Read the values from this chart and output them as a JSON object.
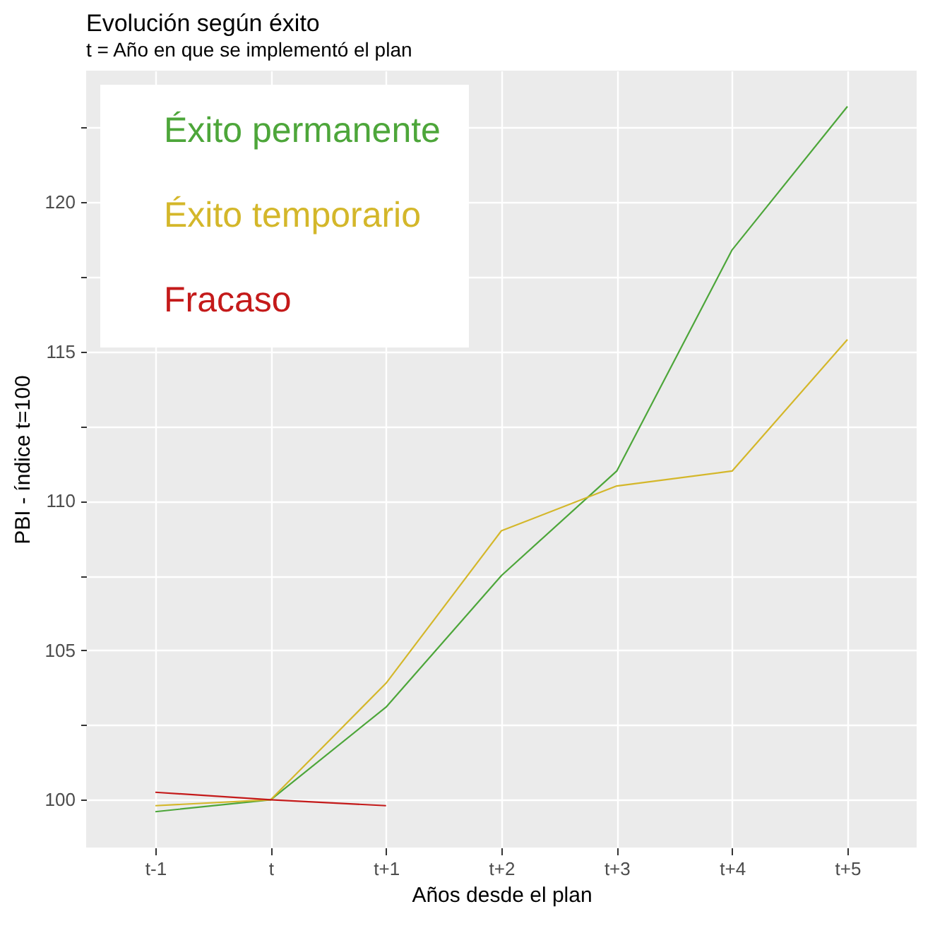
{
  "chart_data": {
    "type": "line",
    "title": "Evolución según éxito",
    "subtitle": "t = Año en que se implementó el plan",
    "xlabel": "Años desde el plan",
    "ylabel": "PBI - índice t=100",
    "categories": [
      "t-1",
      "t",
      "t+1",
      "t+2",
      "t+3",
      "t+4",
      "t+5"
    ],
    "series": [
      {
        "name": "Éxito permanente",
        "color": "#4da63a",
        "values": [
          99.6,
          100,
          103.1,
          107.5,
          111.0,
          118.4,
          123.2
        ]
      },
      {
        "name": "Éxito temporario",
        "color": "#d4b72a",
        "values": [
          99.8,
          100,
          103.9,
          109.0,
          110.5,
          111.0,
          115.4
        ]
      },
      {
        "name": "Fracaso",
        "color": "#c41a1a",
        "values": [
          100.25,
          100,
          99.8,
          null,
          null,
          null,
          null
        ]
      }
    ],
    "ylim": [
      98.4,
      124.4
    ],
    "yticks": [
      100,
      105,
      110,
      115,
      120,
      {
        "value": 102.5,
        "label": null
      },
      {
        "value": 107.5,
        "label": null
      },
      {
        "value": 112.5,
        "label": null
      },
      {
        "value": 117.5,
        "label": null
      },
      {
        "value": 122.5,
        "label": null
      }
    ],
    "grid": true,
    "legend": "top left",
    "marker": "none",
    "line_style": "solid"
  }
}
